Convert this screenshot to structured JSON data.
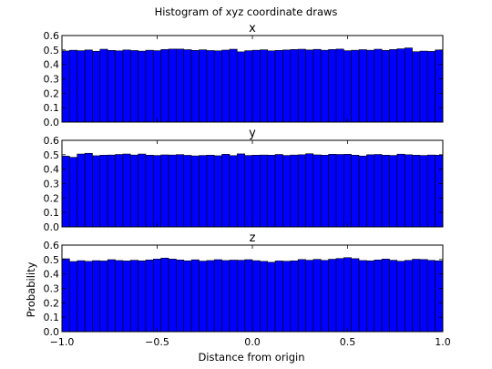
{
  "chart_data": {
    "type": "bar",
    "title": "Histogram of xyz coordinate draws",
    "xlabel": "Distance from origin",
    "ylabel": "Probability",
    "xlim": [
      -1.0,
      1.0
    ],
    "ylim": [
      0.0,
      0.6
    ],
    "x_ticks": [
      "−1.0",
      "−0.5",
      "0.0",
      "0.5",
      "1.0"
    ],
    "y_ticks": [
      "0.0",
      "0.1",
      "0.2",
      "0.3",
      "0.4",
      "0.5",
      "0.6"
    ],
    "bar_color": "#0000ff",
    "edge_color": "#000000",
    "grid": false,
    "bin_edges_range": [
      -1.0,
      1.0
    ],
    "bin_count": 50,
    "panels": [
      {
        "subtitle": "x",
        "values": [
          0.493,
          0.498,
          0.495,
          0.5,
          0.491,
          0.505,
          0.497,
          0.494,
          0.5,
          0.496,
          0.492,
          0.498,
          0.495,
          0.503,
          0.506,
          0.506,
          0.502,
          0.497,
          0.501,
          0.496,
          0.494,
          0.499,
          0.505,
          0.487,
          0.495,
          0.498,
          0.501,
          0.494,
          0.497,
          0.5,
          0.503,
          0.505,
          0.5,
          0.504,
          0.498,
          0.503,
          0.506,
          0.495,
          0.498,
          0.502,
          0.498,
          0.505,
          0.497,
          0.503,
          0.508,
          0.514,
          0.488,
          0.492,
          0.49,
          0.5
        ]
      },
      {
        "subtitle": "y",
        "values": [
          0.49,
          0.482,
          0.505,
          0.51,
          0.493,
          0.497,
          0.498,
          0.502,
          0.505,
          0.498,
          0.505,
          0.497,
          0.495,
          0.499,
          0.498,
          0.501,
          0.496,
          0.492,
          0.495,
          0.497,
          0.493,
          0.503,
          0.494,
          0.506,
          0.495,
          0.497,
          0.498,
          0.497,
          0.502,
          0.495,
          0.498,
          0.5,
          0.507,
          0.499,
          0.497,
          0.503,
          0.502,
          0.503,
          0.497,
          0.491,
          0.5,
          0.502,
          0.497,
          0.495,
          0.504,
          0.5,
          0.497,
          0.495,
          0.498,
          0.497
        ]
      },
      {
        "subtitle": "z",
        "values": [
          0.505,
          0.486,
          0.492,
          0.487,
          0.492,
          0.49,
          0.499,
          0.493,
          0.49,
          0.495,
          0.491,
          0.497,
          0.503,
          0.51,
          0.503,
          0.497,
          0.491,
          0.498,
          0.489,
          0.493,
          0.499,
          0.493,
          0.496,
          0.495,
          0.499,
          0.492,
          0.487,
          0.481,
          0.49,
          0.488,
          0.491,
          0.5,
          0.495,
          0.501,
          0.494,
          0.502,
          0.507,
          0.513,
          0.506,
          0.493,
          0.491,
          0.497,
          0.503,
          0.495,
          0.488,
          0.494,
          0.502,
          0.5,
          0.494,
          0.491
        ]
      }
    ]
  }
}
